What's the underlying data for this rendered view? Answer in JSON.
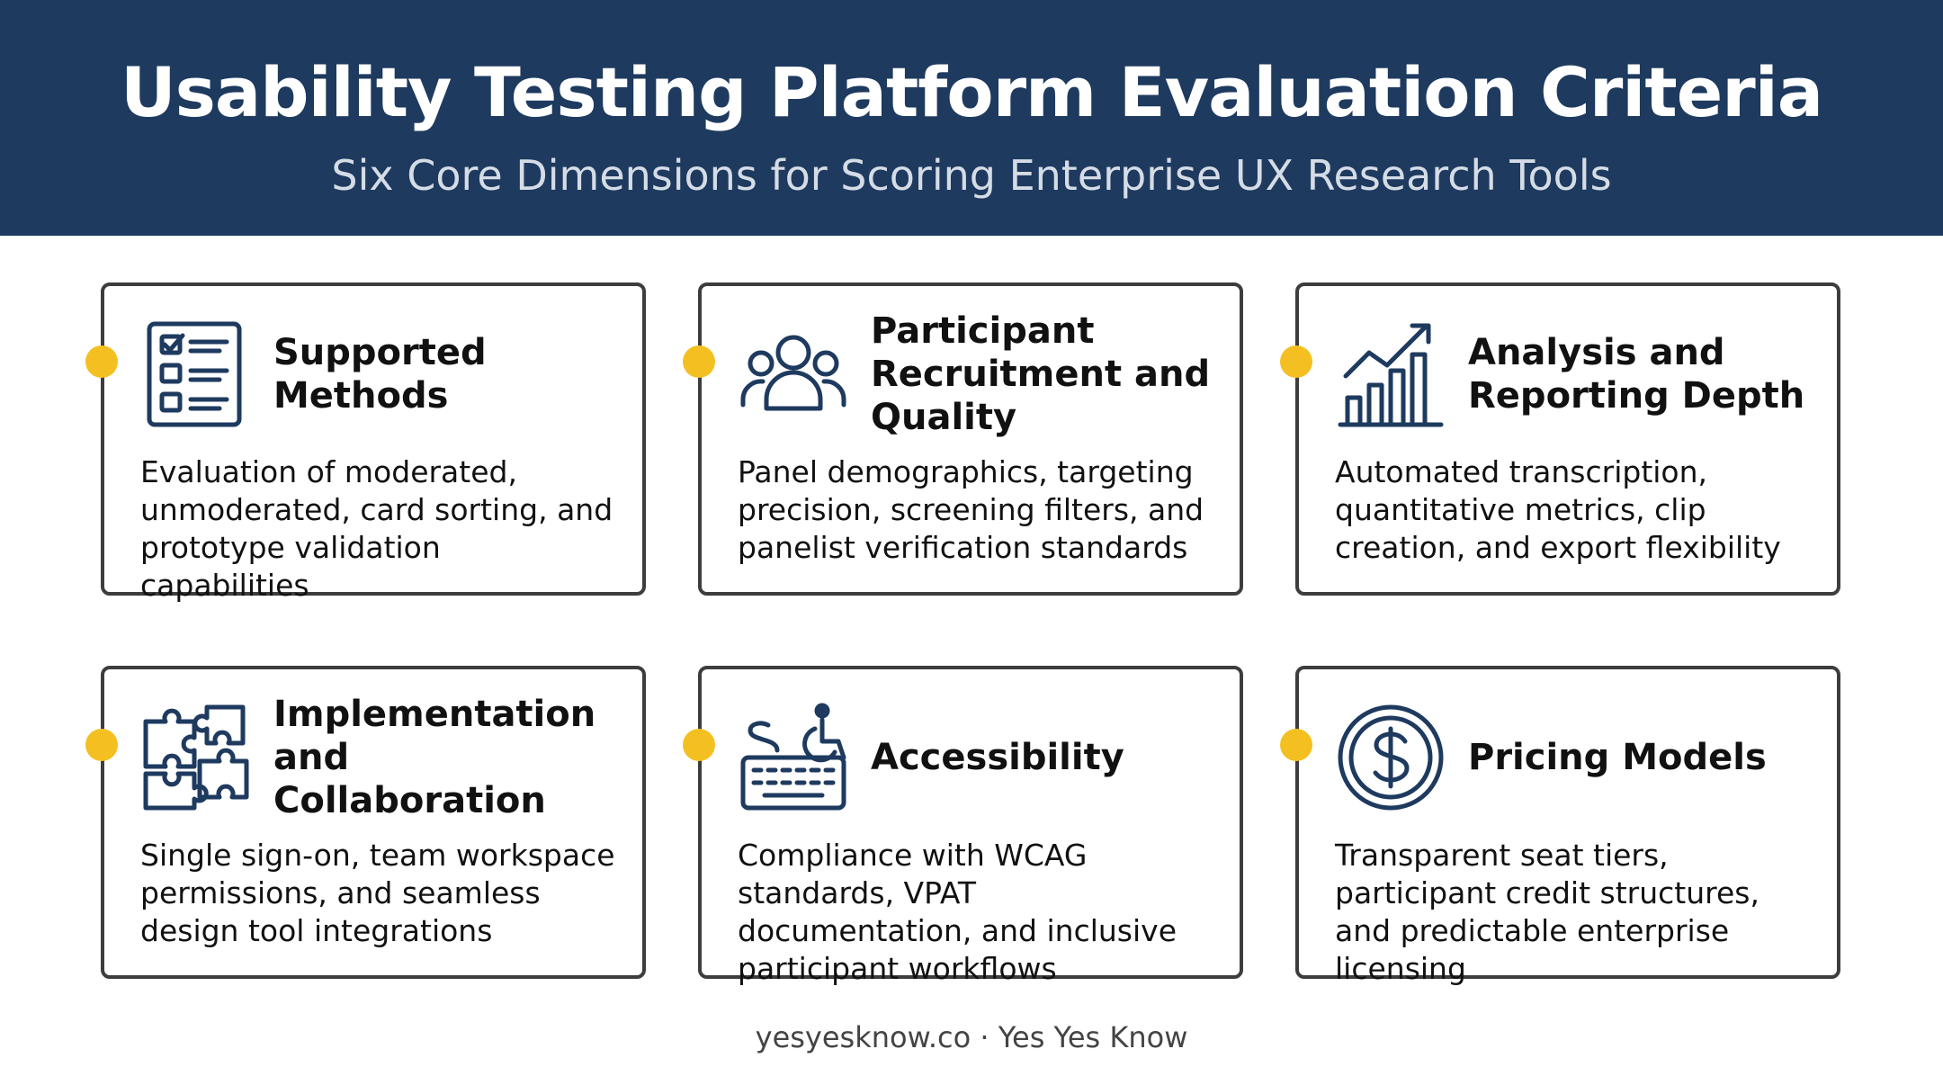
{
  "header": {
    "title": "Usability Testing Platform Evaluation Criteria",
    "subtitle": "Six Core Dimensions for Scoring Enterprise UX Research Tools",
    "background_color": "#1e3a5f"
  },
  "accent_color": "#f4c021",
  "cards": [
    {
      "icon": "checklist-icon",
      "title": "Supported Methods",
      "description": "Evaluation of moderated, unmoderated, card sorting, and prototype validation capabilities"
    },
    {
      "icon": "users-group-icon",
      "title": "Participant Recruitment and Quality",
      "description": "Panel demographics, targeting precision, screening filters, and panelist verification standards"
    },
    {
      "icon": "bar-chart-trend-icon",
      "title": "Analysis and Reporting Depth",
      "description": "Automated transcription, quantitative metrics, clip creation, and export flexibility"
    },
    {
      "icon": "puzzle-pieces-icon",
      "title": "Implementation and Collaboration",
      "description": "Single sign-on, team workspace permissions, and seamless design tool integrations"
    },
    {
      "icon": "accessibility-keyboard-icon",
      "title": "Accessibility",
      "description": "Compliance with WCAG standards, VPAT documentation, and inclusive participant workflows"
    },
    {
      "icon": "dollar-coin-icon",
      "title": "Pricing Models",
      "description": "Transparent seat tiers, participant credit structures, and predictable enterprise licensing"
    }
  ],
  "footer": {
    "text": "yesyesknow.co · Yes Yes Know"
  }
}
